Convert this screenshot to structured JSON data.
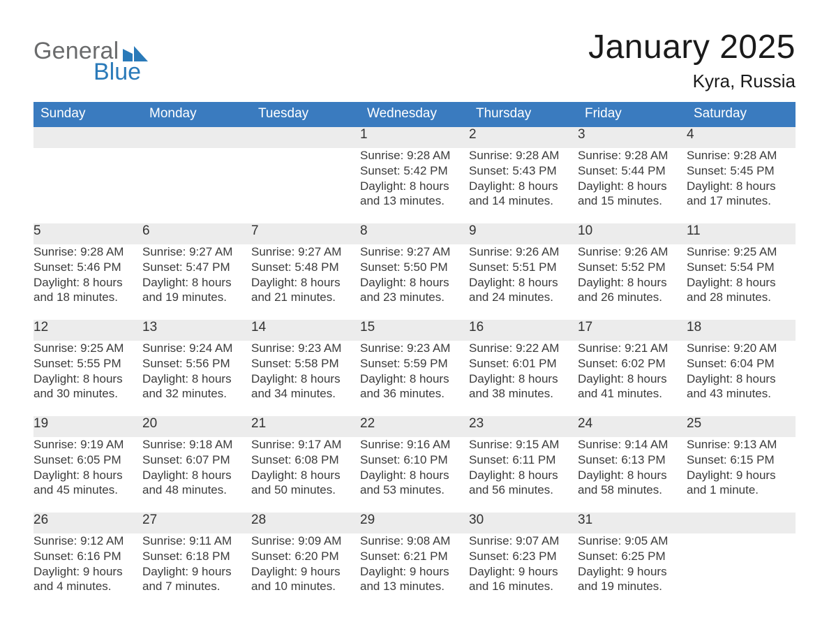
{
  "brand": {
    "word1": "General",
    "word2": "Blue",
    "gray_color": "#6a6b6c",
    "blue_color": "#2a7ab9"
  },
  "title": "January 2025",
  "location": "Kyra, Russia",
  "header_bg": "#3a7bbf",
  "stripe_bg": "#ececec",
  "weekday_labels": [
    "Sunday",
    "Monday",
    "Tuesday",
    "Wednesday",
    "Thursday",
    "Friday",
    "Saturday"
  ],
  "weeks": [
    {
      "days": [
        null,
        null,
        null,
        {
          "n": "1",
          "sunrise": "Sunrise: 9:28 AM",
          "sunset": "Sunset: 5:42 PM",
          "dl1": "Daylight: 8 hours",
          "dl2": "and 13 minutes."
        },
        {
          "n": "2",
          "sunrise": "Sunrise: 9:28 AM",
          "sunset": "Sunset: 5:43 PM",
          "dl1": "Daylight: 8 hours",
          "dl2": "and 14 minutes."
        },
        {
          "n": "3",
          "sunrise": "Sunrise: 9:28 AM",
          "sunset": "Sunset: 5:44 PM",
          "dl1": "Daylight: 8 hours",
          "dl2": "and 15 minutes."
        },
        {
          "n": "4",
          "sunrise": "Sunrise: 9:28 AM",
          "sunset": "Sunset: 5:45 PM",
          "dl1": "Daylight: 8 hours",
          "dl2": "and 17 minutes."
        }
      ]
    },
    {
      "days": [
        {
          "n": "5",
          "sunrise": "Sunrise: 9:28 AM",
          "sunset": "Sunset: 5:46 PM",
          "dl1": "Daylight: 8 hours",
          "dl2": "and 18 minutes."
        },
        {
          "n": "6",
          "sunrise": "Sunrise: 9:27 AM",
          "sunset": "Sunset: 5:47 PM",
          "dl1": "Daylight: 8 hours",
          "dl2": "and 19 minutes."
        },
        {
          "n": "7",
          "sunrise": "Sunrise: 9:27 AM",
          "sunset": "Sunset: 5:48 PM",
          "dl1": "Daylight: 8 hours",
          "dl2": "and 21 minutes."
        },
        {
          "n": "8",
          "sunrise": "Sunrise: 9:27 AM",
          "sunset": "Sunset: 5:50 PM",
          "dl1": "Daylight: 8 hours",
          "dl2": "and 23 minutes."
        },
        {
          "n": "9",
          "sunrise": "Sunrise: 9:26 AM",
          "sunset": "Sunset: 5:51 PM",
          "dl1": "Daylight: 8 hours",
          "dl2": "and 24 minutes."
        },
        {
          "n": "10",
          "sunrise": "Sunrise: 9:26 AM",
          "sunset": "Sunset: 5:52 PM",
          "dl1": "Daylight: 8 hours",
          "dl2": "and 26 minutes."
        },
        {
          "n": "11",
          "sunrise": "Sunrise: 9:25 AM",
          "sunset": "Sunset: 5:54 PM",
          "dl1": "Daylight: 8 hours",
          "dl2": "and 28 minutes."
        }
      ]
    },
    {
      "days": [
        {
          "n": "12",
          "sunrise": "Sunrise: 9:25 AM",
          "sunset": "Sunset: 5:55 PM",
          "dl1": "Daylight: 8 hours",
          "dl2": "and 30 minutes."
        },
        {
          "n": "13",
          "sunrise": "Sunrise: 9:24 AM",
          "sunset": "Sunset: 5:56 PM",
          "dl1": "Daylight: 8 hours",
          "dl2": "and 32 minutes."
        },
        {
          "n": "14",
          "sunrise": "Sunrise: 9:23 AM",
          "sunset": "Sunset: 5:58 PM",
          "dl1": "Daylight: 8 hours",
          "dl2": "and 34 minutes."
        },
        {
          "n": "15",
          "sunrise": "Sunrise: 9:23 AM",
          "sunset": "Sunset: 5:59 PM",
          "dl1": "Daylight: 8 hours",
          "dl2": "and 36 minutes."
        },
        {
          "n": "16",
          "sunrise": "Sunrise: 9:22 AM",
          "sunset": "Sunset: 6:01 PM",
          "dl1": "Daylight: 8 hours",
          "dl2": "and 38 minutes."
        },
        {
          "n": "17",
          "sunrise": "Sunrise: 9:21 AM",
          "sunset": "Sunset: 6:02 PM",
          "dl1": "Daylight: 8 hours",
          "dl2": "and 41 minutes."
        },
        {
          "n": "18",
          "sunrise": "Sunrise: 9:20 AM",
          "sunset": "Sunset: 6:04 PM",
          "dl1": "Daylight: 8 hours",
          "dl2": "and 43 minutes."
        }
      ]
    },
    {
      "days": [
        {
          "n": "19",
          "sunrise": "Sunrise: 9:19 AM",
          "sunset": "Sunset: 6:05 PM",
          "dl1": "Daylight: 8 hours",
          "dl2": "and 45 minutes."
        },
        {
          "n": "20",
          "sunrise": "Sunrise: 9:18 AM",
          "sunset": "Sunset: 6:07 PM",
          "dl1": "Daylight: 8 hours",
          "dl2": "and 48 minutes."
        },
        {
          "n": "21",
          "sunrise": "Sunrise: 9:17 AM",
          "sunset": "Sunset: 6:08 PM",
          "dl1": "Daylight: 8 hours",
          "dl2": "and 50 minutes."
        },
        {
          "n": "22",
          "sunrise": "Sunrise: 9:16 AM",
          "sunset": "Sunset: 6:10 PM",
          "dl1": "Daylight: 8 hours",
          "dl2": "and 53 minutes."
        },
        {
          "n": "23",
          "sunrise": "Sunrise: 9:15 AM",
          "sunset": "Sunset: 6:11 PM",
          "dl1": "Daylight: 8 hours",
          "dl2": "and 56 minutes."
        },
        {
          "n": "24",
          "sunrise": "Sunrise: 9:14 AM",
          "sunset": "Sunset: 6:13 PM",
          "dl1": "Daylight: 8 hours",
          "dl2": "and 58 minutes."
        },
        {
          "n": "25",
          "sunrise": "Sunrise: 9:13 AM",
          "sunset": "Sunset: 6:15 PM",
          "dl1": "Daylight: 9 hours",
          "dl2": "and 1 minute."
        }
      ]
    },
    {
      "days": [
        {
          "n": "26",
          "sunrise": "Sunrise: 9:12 AM",
          "sunset": "Sunset: 6:16 PM",
          "dl1": "Daylight: 9 hours",
          "dl2": "and 4 minutes."
        },
        {
          "n": "27",
          "sunrise": "Sunrise: 9:11 AM",
          "sunset": "Sunset: 6:18 PM",
          "dl1": "Daylight: 9 hours",
          "dl2": "and 7 minutes."
        },
        {
          "n": "28",
          "sunrise": "Sunrise: 9:09 AM",
          "sunset": "Sunset: 6:20 PM",
          "dl1": "Daylight: 9 hours",
          "dl2": "and 10 minutes."
        },
        {
          "n": "29",
          "sunrise": "Sunrise: 9:08 AM",
          "sunset": "Sunset: 6:21 PM",
          "dl1": "Daylight: 9 hours",
          "dl2": "and 13 minutes."
        },
        {
          "n": "30",
          "sunrise": "Sunrise: 9:07 AM",
          "sunset": "Sunset: 6:23 PM",
          "dl1": "Daylight: 9 hours",
          "dl2": "and 16 minutes."
        },
        {
          "n": "31",
          "sunrise": "Sunrise: 9:05 AM",
          "sunset": "Sunset: 6:25 PM",
          "dl1": "Daylight: 9 hours",
          "dl2": "and 19 minutes."
        },
        null
      ]
    }
  ]
}
